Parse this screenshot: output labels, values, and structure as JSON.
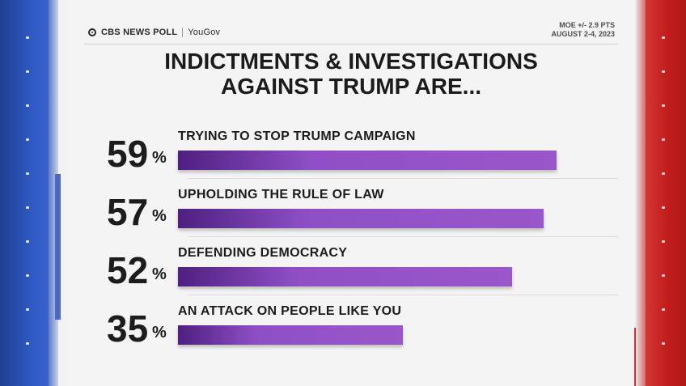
{
  "header": {
    "brand_left": "CBS NEWS POLL",
    "brand_right": "YouGov",
    "moe": "MOE +/- 2.9 PTS",
    "date": "AUGUST 2-4, 2023"
  },
  "title_line1": "INDICTMENTS & INVESTIGATIONS",
  "title_line2": "AGAINST TRUMP ARE...",
  "chart_data": {
    "type": "bar",
    "orientation": "horizontal",
    "categories": [
      "TRYING TO STOP TRUMP CAMPAIGN",
      "UPHOLDING THE RULE OF LAW",
      "DEFENDING DEMOCRACY",
      "AN ATTACK ON PEOPLE LIKE YOU"
    ],
    "values": [
      59,
      57,
      52,
      35
    ],
    "value_labels": [
      "59",
      "57",
      "52",
      "35"
    ],
    "unit": "%",
    "title": "INDICTMENTS & INVESTIGATIONS AGAINST TRUMP ARE...",
    "xlim": [
      0,
      63
    ],
    "grid": false,
    "legend": "none",
    "colors": {
      "bar_start": "#4f1f80",
      "bar_end": "#9a57c9",
      "background": "#f4f4f4",
      "left_band": "#2f59c2",
      "right_band": "#c41f1f"
    }
  }
}
